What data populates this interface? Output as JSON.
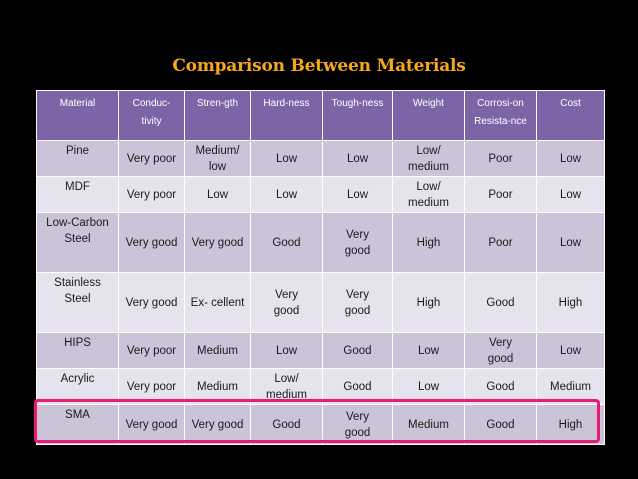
{
  "title": "Comparison Between Materials",
  "headers": [
    "Material",
    "Conduc-\ntivity",
    "Stren-gth",
    "Hard-ness",
    "Tough-ness",
    "Weight",
    "Corrosi-on\nResista-nce",
    "Cost"
  ],
  "rows": [
    [
      "Pine",
      "Very poor",
      "Medium/\nlow",
      "Low",
      "Low",
      "Low/\nmedium",
      "Poor",
      "Low"
    ],
    [
      "MDF",
      "Very poor",
      "Low",
      "Low",
      "Low",
      "Low/\nmedium",
      "Poor",
      "Low"
    ],
    [
      "Low-Carbon\nSteel",
      "Very good",
      "Very good",
      "Good",
      "Very\ngood",
      "High",
      "Poor",
      "Low"
    ],
    [
      "Stainless\nSteel",
      "Very good",
      "Ex- cellent",
      "Very\ngood",
      "Very\ngood",
      "High",
      "Good",
      "High"
    ],
    [
      "HIPS",
      "Very poor",
      "Medium",
      "Low",
      "Good",
      "Low",
      "Very\ngood",
      "Low"
    ],
    [
      "Acrylic",
      "Very poor",
      "Medium",
      "Low/\nmedium",
      "Good",
      "Low",
      "Good",
      "Medium"
    ],
    [
      "SMA",
      "Very good",
      "Very good",
      "Good",
      "Very\ngood",
      "Medium",
      "Good",
      "High"
    ]
  ],
  "highlight_row": "SMA",
  "colors": {
    "background": "#000000",
    "title": "#f5a81c",
    "header_bg": "#7c65a6",
    "row_dark": "#cbc4d9",
    "row_light": "#e7e3ee",
    "highlight": "#ea1a74"
  }
}
